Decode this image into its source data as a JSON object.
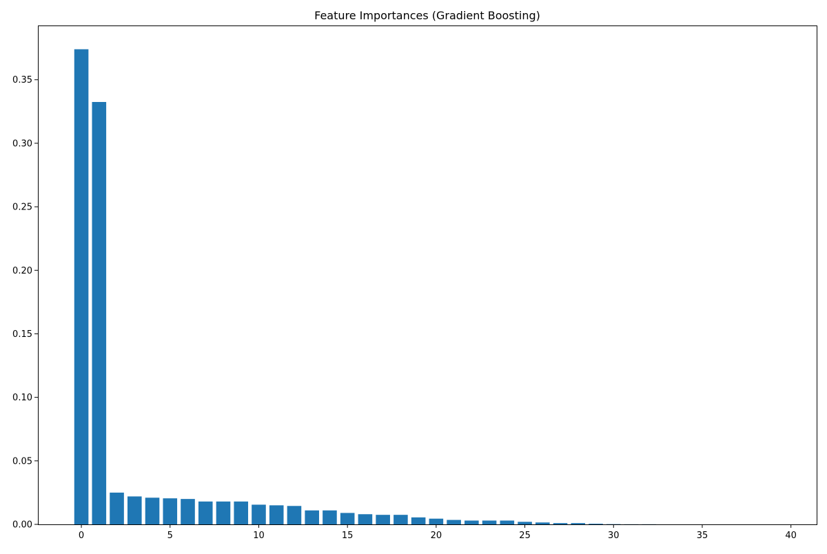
{
  "chart_data": {
    "type": "bar",
    "title": "Feature Importances (Gradient Boosting)",
    "xlabel": "",
    "ylabel": "",
    "x": [
      0,
      1,
      2,
      3,
      4,
      5,
      6,
      7,
      8,
      9,
      10,
      11,
      12,
      13,
      14,
      15,
      16,
      17,
      18,
      19,
      20,
      21,
      22,
      23,
      24,
      25,
      26,
      27,
      28,
      29,
      30,
      31,
      32,
      33,
      34,
      35,
      36,
      37,
      38,
      39
    ],
    "values": [
      0.374,
      0.3325,
      0.025,
      0.022,
      0.021,
      0.0205,
      0.02,
      0.018,
      0.018,
      0.018,
      0.0155,
      0.015,
      0.0145,
      0.011,
      0.011,
      0.009,
      0.008,
      0.0075,
      0.0075,
      0.0055,
      0.0045,
      0.0035,
      0.003,
      0.003,
      0.003,
      0.002,
      0.0015,
      0.001,
      0.001,
      0.0005,
      0.0002,
      0.0001,
      0.0001,
      0,
      0,
      0,
      0,
      0,
      0,
      0
    ],
    "xlim": [
      -2.45,
      41.45
    ],
    "ylim": [
      0,
      0.3927
    ],
    "xticks": [
      0,
      5,
      10,
      15,
      20,
      25,
      30,
      35,
      40
    ],
    "yticks": [
      0.0,
      0.05,
      0.1,
      0.15,
      0.2,
      0.25,
      0.3,
      0.35
    ],
    "ytick_format_decimals": 2,
    "bar_color": "#1f77b4",
    "grid": false,
    "legend": "none"
  }
}
